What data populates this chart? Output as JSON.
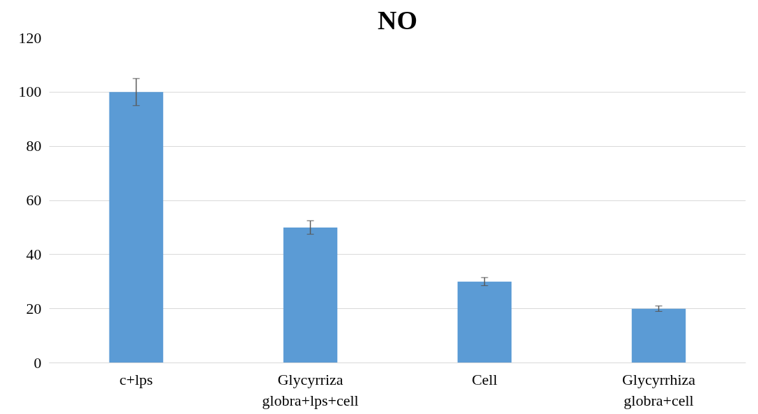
{
  "chart_data": {
    "type": "bar",
    "title": "NO",
    "categories": [
      "c+lps",
      "Glycyrriza globra+lps+cell",
      "Cell",
      "Glycyrrhiza globra+cell"
    ],
    "values": [
      100,
      50,
      30,
      20
    ],
    "errors": [
      5,
      2.5,
      1.5,
      1
    ],
    "color": "#5b9bd5",
    "ylim": [
      0,
      120
    ],
    "yticks": [
      0,
      20,
      40,
      60,
      80,
      100,
      120
    ],
    "grid": "y"
  }
}
